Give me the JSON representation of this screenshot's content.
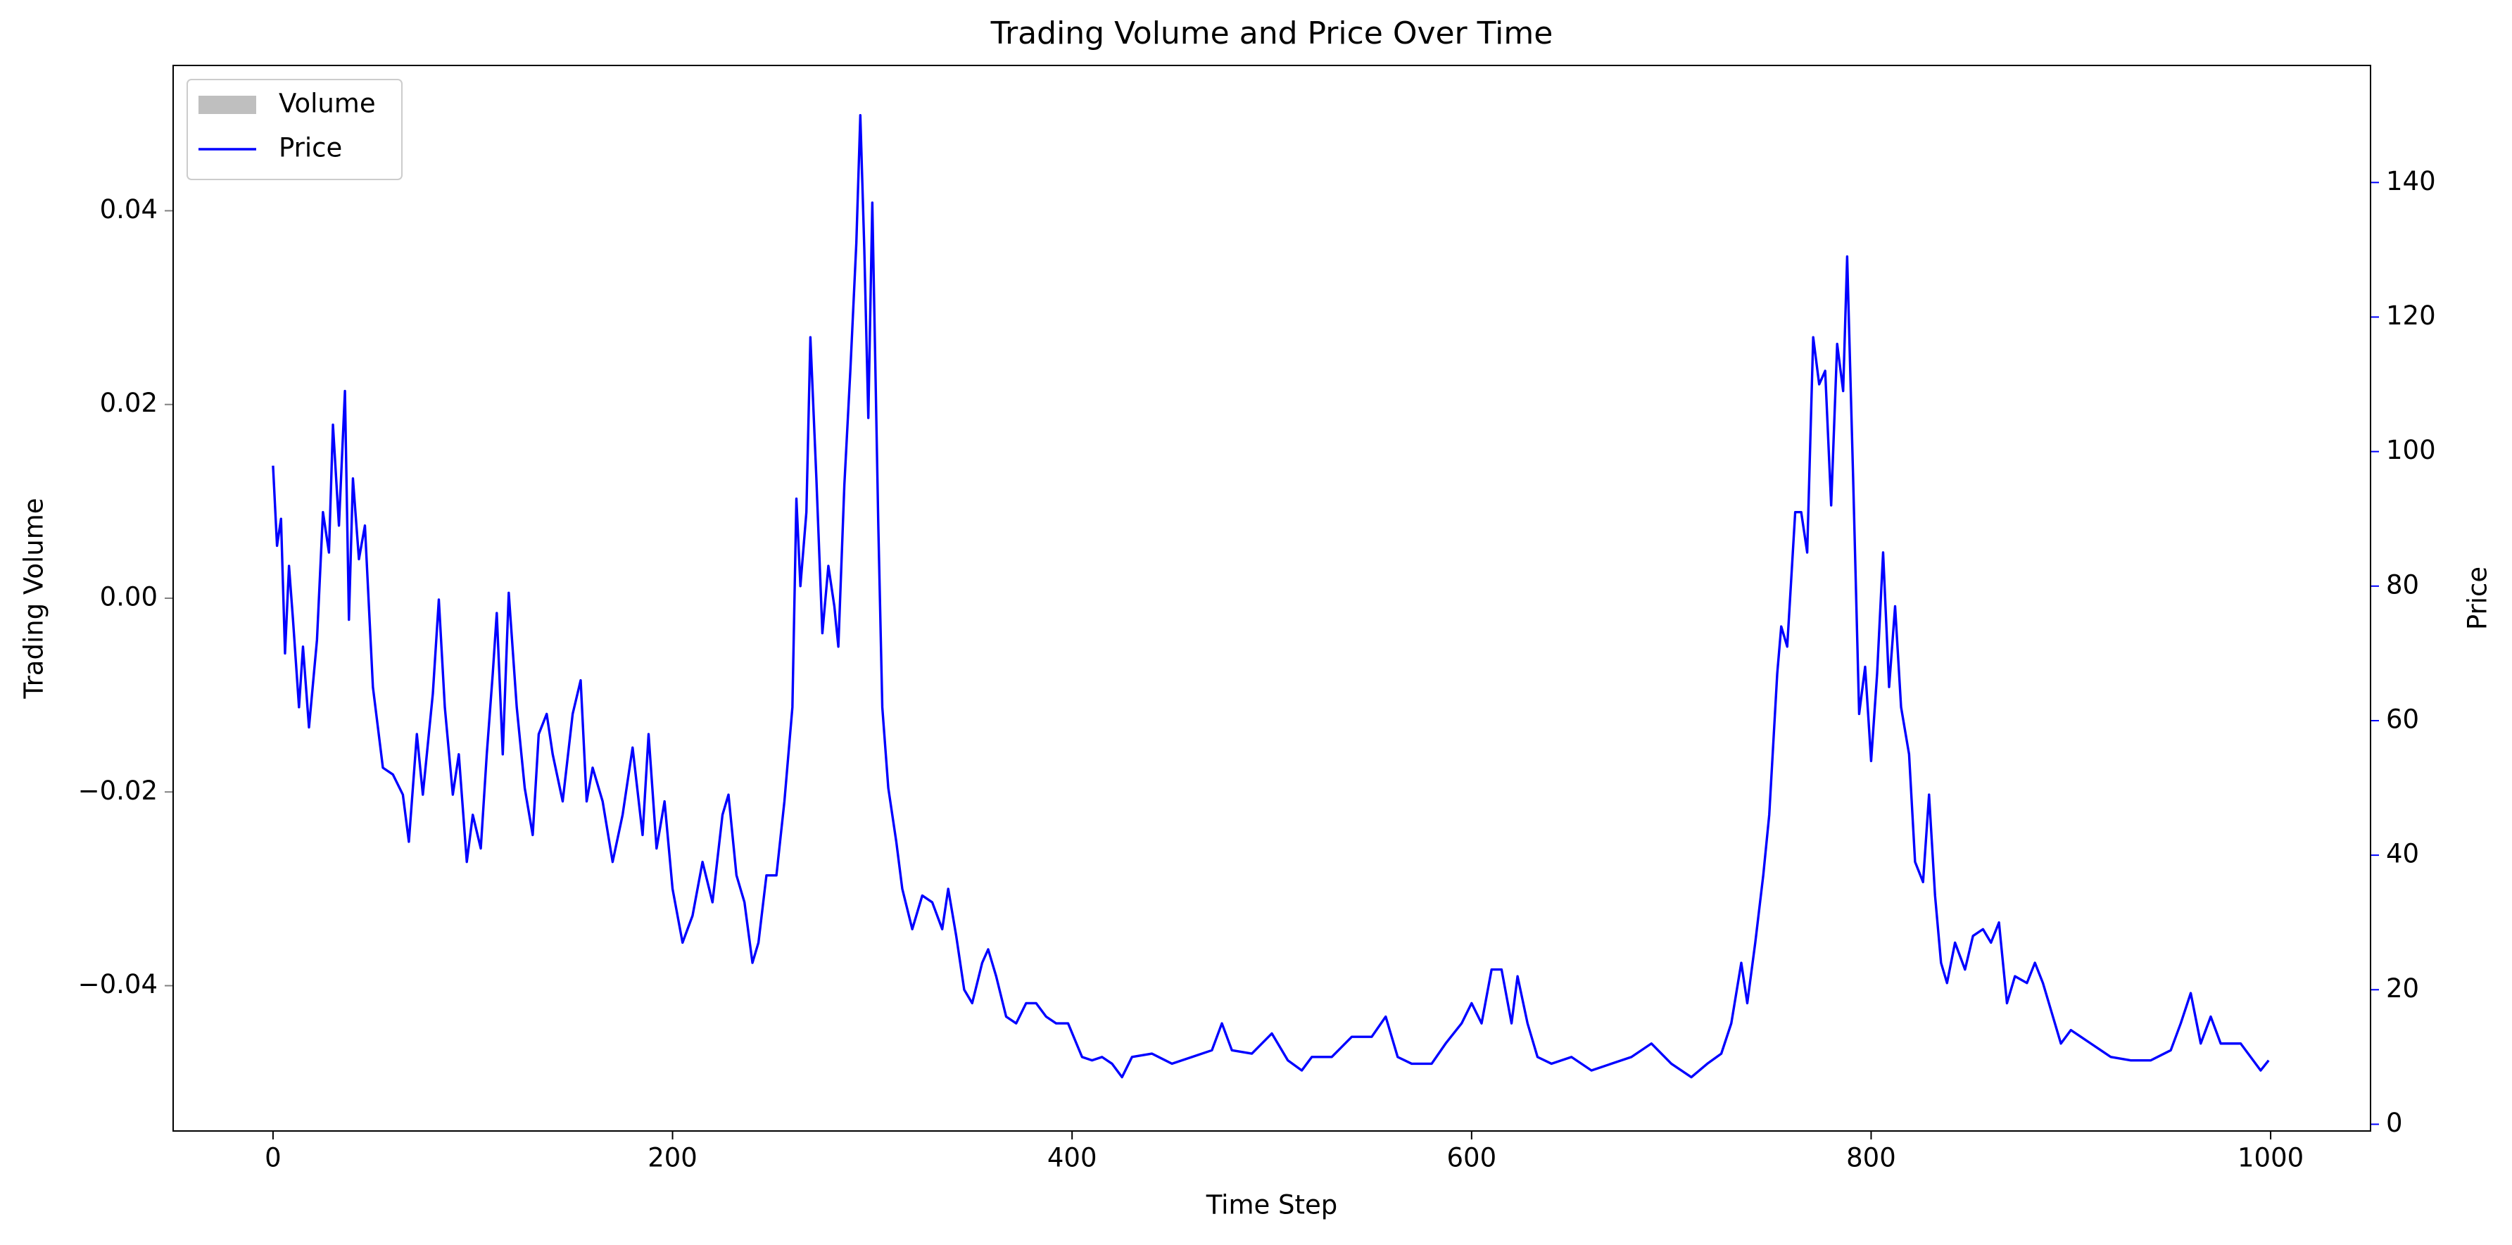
{
  "chart_data": {
    "type": "line",
    "title": "Trading Volume and Price Over Time",
    "xlabel": "Time Step",
    "ylabel": "Trading Volume",
    "y2label": "Price",
    "ylabel_color": "#808080",
    "y2label_color": "#0000ff",
    "legend": "upper left",
    "xlim": [
      -50,
      1050
    ],
    "xticks": [
      0,
      200,
      400,
      600,
      800,
      1000
    ],
    "ylim": [
      -0.055,
      0.055
    ],
    "yticks": [
      {
        "value": -0.04,
        "label": "−0.04"
      },
      {
        "value": -0.02,
        "label": "−0.02"
      },
      {
        "value": 0,
        "label": "0.00"
      },
      0.02,
      0.04
    ],
    "y2lim": [
      -1,
      157.4
    ],
    "y2ticks": [
      0,
      20,
      40,
      60,
      80,
      100,
      120,
      140
    ],
    "x": [
      0,
      2,
      4,
      6,
      8,
      10,
      13,
      15,
      18,
      22,
      25,
      28,
      30,
      33,
      36,
      38,
      40,
      43,
      46,
      48,
      50,
      55,
      60,
      65,
      68,
      72,
      75,
      80,
      83,
      86,
      90,
      93,
      97,
      100,
      104,
      107,
      110,
      112,
      115,
      118,
      122,
      126,
      130,
      133,
      137,
      140,
      145,
      150,
      154,
      157,
      160,
      165,
      170,
      175,
      180,
      185,
      188,
      192,
      196,
      200,
      205,
      210,
      215,
      220,
      225,
      228,
      232,
      236,
      240,
      243,
      247,
      252,
      256,
      260,
      262,
      264,
      267,
      269,
      272,
      275,
      278,
      281,
      283,
      286,
      289,
      292,
      294,
      296,
      298,
      300,
      303,
      305,
      308,
      312,
      315,
      320,
      325,
      330,
      335,
      338,
      342,
      346,
      350,
      355,
      358,
      362,
      367,
      372,
      377,
      382,
      387,
      392,
      398,
      405,
      410,
      415,
      420,
      425,
      430,
      440,
      450,
      460,
      470,
      475,
      480,
      490,
      500,
      508,
      515,
      520,
      530,
      540,
      550,
      557,
      563,
      570,
      580,
      587,
      595,
      600,
      605,
      610,
      615,
      620,
      623,
      628,
      633,
      640,
      650,
      660,
      670,
      680,
      690,
      700,
      710,
      718,
      725,
      730,
      735,
      738,
      742,
      746,
      749,
      753,
      755,
      758,
      762,
      765,
      768,
      771,
      774,
      777,
      780,
      783,
      786,
      788,
      791,
      794,
      797,
      800,
      803,
      806,
      809,
      812,
      815,
      819,
      822,
      826,
      829,
      832,
      835,
      838,
      842,
      847,
      851,
      856,
      860,
      864,
      868,
      872,
      878,
      882,
      886,
      890,
      895,
      900,
      905,
      910,
      915,
      920,
      930,
      940,
      950,
      955,
      960,
      965,
      970,
      975,
      985,
      990,
      995,
      999
    ],
    "series": [
      {
        "name": "Volume",
        "type": "bar",
        "color": "#bfbfbf",
        "values": [
          0,
          0,
          0,
          0,
          0,
          0,
          0,
          0,
          0,
          0,
          0,
          0,
          0,
          0,
          0,
          0,
          0,
          0,
          0,
          0,
          0,
          0,
          0,
          0,
          0,
          0,
          0,
          0,
          0,
          0,
          0,
          0,
          0,
          0,
          0,
          0,
          0,
          0,
          0,
          0,
          0,
          0,
          0,
          0,
          0,
          0,
          0,
          0,
          0,
          0,
          0,
          0,
          0,
          0,
          0,
          0,
          0,
          0,
          0,
          0,
          0,
          0,
          0,
          0,
          0,
          0,
          0,
          0,
          0,
          0,
          0,
          0,
          0,
          0,
          0,
          0,
          0,
          0,
          0,
          0,
          0,
          0,
          0,
          0,
          0,
          0,
          0,
          0,
          0,
          0,
          0,
          0,
          0,
          0,
          0,
          0,
          0,
          0,
          0,
          0,
          0,
          0,
          0,
          0,
          0,
          0,
          0,
          0,
          0,
          0,
          0,
          0,
          0,
          0,
          0,
          0,
          0,
          0,
          0,
          0,
          0,
          0,
          0,
          0,
          0,
          0,
          0,
          0,
          0,
          0,
          0,
          0,
          0,
          0,
          0,
          0,
          0,
          0,
          0,
          0,
          0,
          0,
          0,
          0,
          0,
          0,
          0,
          0,
          0,
          0,
          0,
          0,
          0,
          0,
          0,
          0,
          0,
          0,
          0,
          0,
          0,
          0,
          0,
          0,
          0,
          0,
          0,
          0,
          0,
          0,
          0,
          0,
          0,
          0,
          0,
          0,
          0,
          0,
          0,
          0,
          0,
          0,
          0,
          0,
          0,
          0,
          0,
          0,
          0,
          0,
          0,
          0,
          0,
          0,
          0,
          0,
          0,
          0,
          0,
          0,
          0,
          0,
          0,
          0,
          0,
          0,
          0,
          0,
          0,
          0,
          0,
          0,
          0,
          0,
          0,
          0,
          0,
          0,
          0,
          0,
          0,
          0
        ]
      },
      {
        "name": "Price",
        "type": "line",
        "axis": "y2",
        "color": "#0000ff",
        "values": [
          97.9,
          86,
          90,
          70,
          83,
          75,
          62,
          71,
          59,
          72,
          91,
          85,
          104,
          89,
          109,
          75,
          96,
          84,
          89,
          77,
          65,
          53,
          52,
          49,
          42,
          58,
          49,
          64,
          78,
          62,
          49,
          55,
          39,
          46,
          41,
          55,
          67,
          76,
          55,
          79,
          62,
          50,
          43,
          58,
          61,
          55,
          48,
          61,
          66,
          48,
          53,
          48,
          39,
          46,
          56,
          43,
          58,
          41,
          48,
          35,
          27,
          31,
          39,
          33,
          46,
          49,
          37,
          33,
          24,
          27,
          37,
          37,
          48,
          62,
          93,
          80,
          91,
          117,
          96,
          73,
          83,
          77,
          71,
          95,
          112,
          131,
          150,
          130,
          105,
          137,
          89,
          62,
          50,
          42,
          35,
          29,
          34,
          33,
          29,
          35,
          28,
          20,
          18,
          24,
          26,
          22,
          16,
          15,
          18,
          18,
          16,
          15,
          15,
          10,
          9.5,
          10,
          9,
          7,
          10,
          10.5,
          9,
          10,
          11,
          15,
          11,
          10.5,
          13.5,
          9.5,
          8,
          10,
          10,
          13,
          13,
          16,
          10,
          9,
          9,
          12,
          15,
          18,
          15,
          23,
          23,
          15,
          22,
          15,
          10,
          9,
          10,
          8,
          9,
          10,
          12,
          9,
          7,
          9,
          10.5,
          15,
          24,
          18,
          27,
          37,
          46,
          67,
          74,
          71,
          91,
          91,
          85,
          117,
          110,
          112,
          92,
          116,
          109,
          129,
          96,
          61,
          68,
          54,
          67,
          85,
          65,
          77,
          62,
          55,
          39,
          36,
          49,
          34,
          24,
          21,
          27,
          23,
          28,
          29,
          27,
          30,
          18,
          22,
          21,
          24,
          21,
          17,
          12,
          14,
          13,
          12,
          11,
          10,
          9.5,
          9.5,
          11,
          15,
          19.5,
          12,
          16,
          12,
          12,
          10,
          8,
          9.5
        ]
      }
    ]
  }
}
